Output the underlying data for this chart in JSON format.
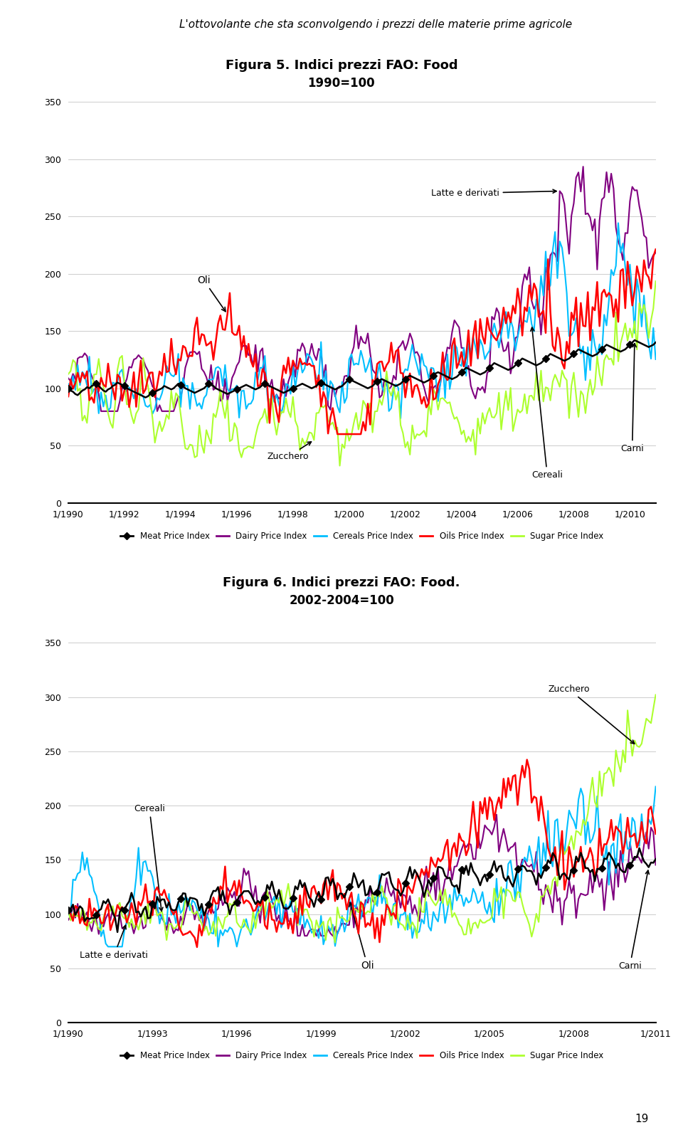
{
  "fig1_title": "Figura 5. Indici prezzi FAO: Food",
  "fig1_subtitle": "1990=100",
  "fig2_title": "Figura 6. Indici prezzi FAO: Food.",
  "fig2_subtitle": "2002-2004=100",
  "header_text": "L'ottovolante che sta sconvolgendo i prezzi delle materie prime agricole",
  "colors": {
    "meat": "#000000",
    "dairy": "#800080",
    "cereals": "#00BFFF",
    "oils": "#FF0000",
    "sugar": "#ADFF2F"
  },
  "legend_labels": [
    "Meat Price Index",
    "Dairy Price Index",
    "Cereals Price Index",
    "Oils Price Index",
    "Sugar Price Index"
  ],
  "fig1_xlabels": [
    "1/1990",
    "1/1992",
    "1/1994",
    "1/1996",
    "1/1998",
    "1/2000",
    "1/2002",
    "1/2004",
    "1/2006",
    "1/2008",
    "1/2010"
  ],
  "fig2_xlabels": [
    "1/1990",
    "1/1993",
    "1/1996",
    "1/1999",
    "1/2002",
    "1/2005",
    "1/2008",
    "1/2011"
  ],
  "header_bg": "#8B0000",
  "page_bg": "#FFFFFF",
  "footer_number": "19"
}
